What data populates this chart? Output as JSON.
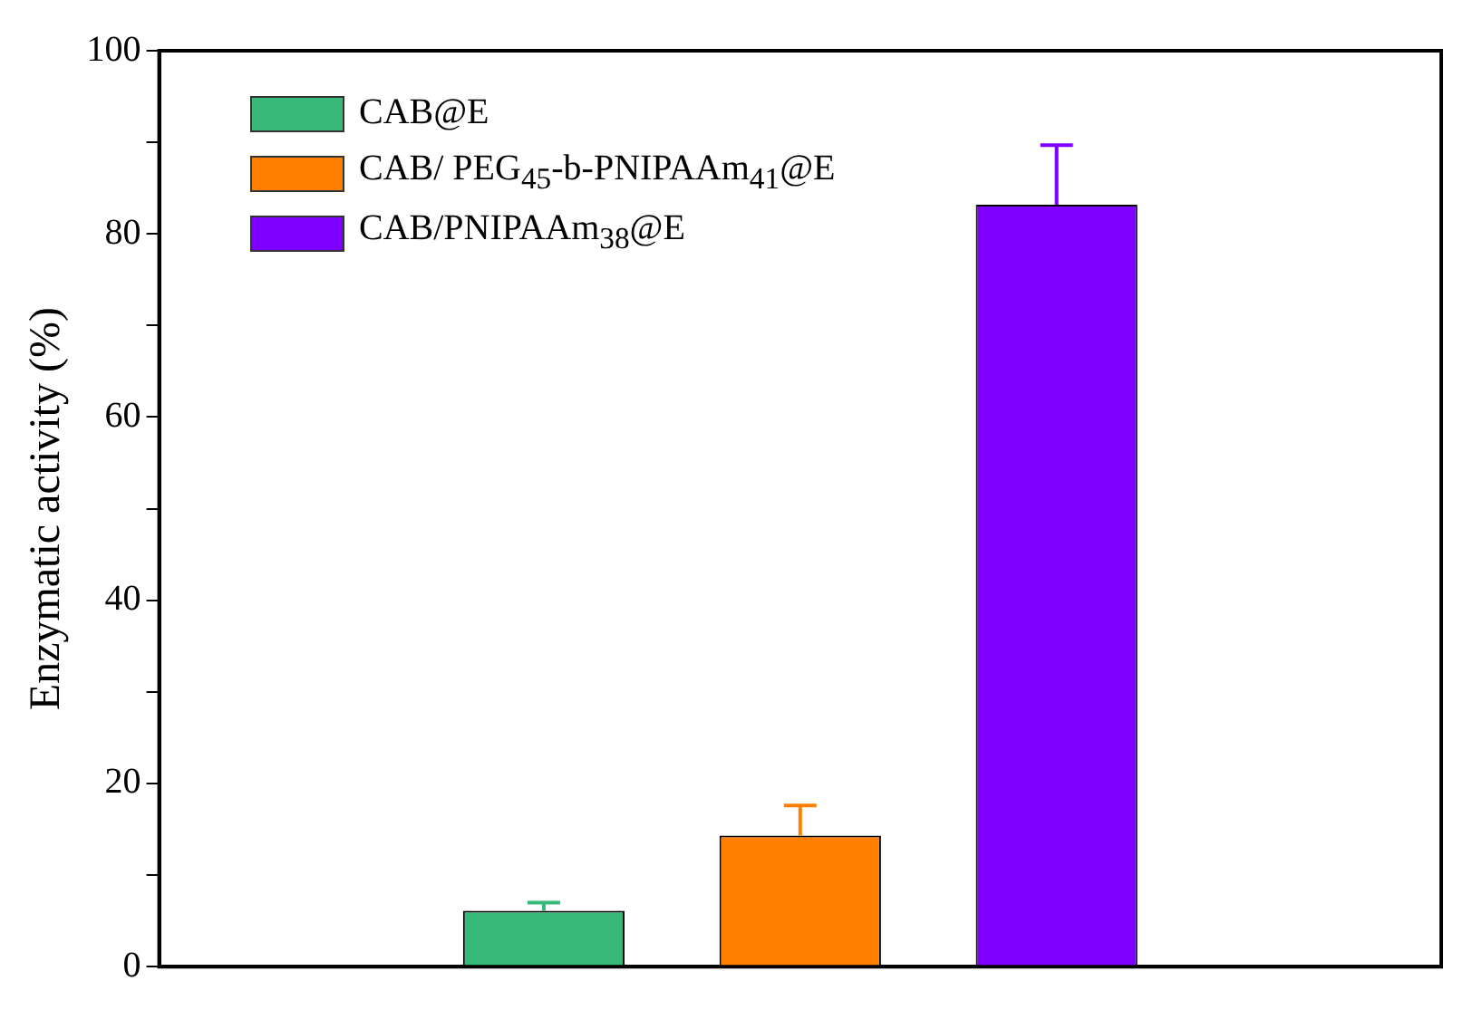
{
  "chart_data": {
    "type": "bar",
    "ylabel": "Enzymatic activity (%)",
    "categories": [
      null,
      null,
      null,
      null,
      null
    ],
    "series": [
      {
        "name": "CAB@E",
        "color": "#36b979",
        "values": [
          null,
          6.1,
          null,
          null,
          null
        ],
        "errors": [
          null,
          0.9,
          null,
          null,
          null
        ]
      },
      {
        "name": "CAB/ PEG$_{45}$-b-PNIPAAm$_{41}$@E",
        "color": "#ff8000",
        "values": [
          null,
          null,
          14.3,
          null,
          null
        ],
        "errors": [
          null,
          null,
          3.3,
          null,
          null
        ]
      },
      {
        "name": "CAB/PNIPAAm$_{38}$@E",
        "color": "#8000ff",
        "values": [
          null,
          null,
          null,
          83.2,
          null
        ],
        "errors": [
          null,
          null,
          null,
          6.5,
          null
        ]
      }
    ],
    "ylim": [
      0,
      100
    ],
    "yticks": [
      0,
      {
        "value": 10,
        "label": null
      },
      20,
      {
        "value": 30,
        "label": null
      },
      40,
      {
        "value": 50,
        "label": null
      },
      60,
      {
        "value": 70,
        "label": null
      },
      80,
      {
        "value": 90,
        "label": null
      },
      100
    ],
    "grid": false,
    "legend": "top left"
  }
}
